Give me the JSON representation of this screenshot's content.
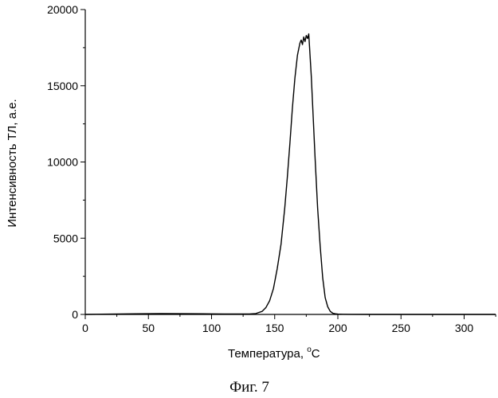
{
  "figure": {
    "caption": "Фиг. 7"
  },
  "chart_data": {
    "type": "line",
    "xlabel": "Температура, ",
    "xlabel_unit_sup": "o",
    "xlabel_unit": "C",
    "ylabel": "Интенсивность ТЛ, а.е.",
    "xlim": [
      0,
      325
    ],
    "ylim": [
      0,
      20000
    ],
    "x_ticks": [
      0,
      50,
      100,
      150,
      200,
      250,
      300
    ],
    "y_ticks": [
      0,
      5000,
      10000,
      15000,
      20000
    ],
    "grid": false,
    "series": [
      {
        "x": [
          0,
          20,
          40,
          60,
          80,
          100,
          110,
          120,
          130,
          135,
          140,
          143,
          146,
          149,
          152,
          155,
          158,
          160,
          162,
          164,
          166,
          168,
          170,
          171,
          172,
          173,
          174,
          175,
          176,
          177,
          178,
          179,
          180,
          182,
          184,
          186,
          188,
          190,
          192,
          194,
          196,
          198,
          200,
          204,
          210,
          230,
          260,
          290,
          325
        ],
        "y": [
          0,
          20,
          40,
          55,
          45,
          35,
          30,
          25,
          30,
          60,
          200,
          450,
          900,
          1700,
          3000,
          4600,
          7000,
          9000,
          11200,
          13500,
          15500,
          17000,
          17800,
          18000,
          17700,
          18200,
          17900,
          18300,
          18100,
          18400,
          17000,
          15600,
          13800,
          10200,
          7000,
          4500,
          2400,
          1100,
          500,
          200,
          80,
          40,
          20,
          10,
          5,
          0,
          0,
          0,
          0
        ]
      }
    ]
  }
}
